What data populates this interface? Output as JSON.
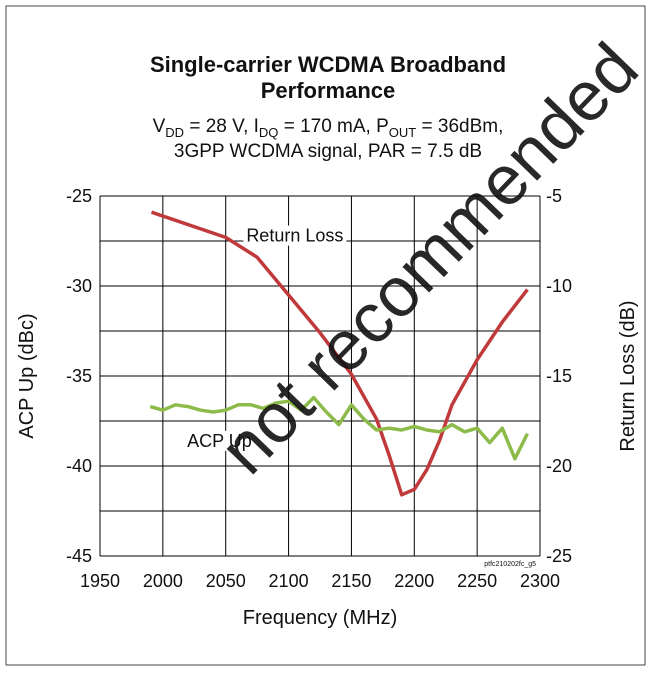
{
  "chart_data": {
    "type": "line",
    "title": [
      "Single-carrier WCDMA Broadband",
      "Performance"
    ],
    "subtitle": [
      [
        {
          "t": "V"
        },
        {
          "sub": "DD"
        },
        {
          "t": " = 28 V, I"
        },
        {
          "sub": "DQ"
        },
        {
          "t": " = 170 mA, P"
        },
        {
          "sub": "OUT"
        },
        {
          "t": " = 36dBm,"
        }
      ],
      [
        {
          "t": "3GPP WCDMA signal, PAR = 7.5 dB"
        }
      ]
    ],
    "xlabel": "Frequency (MHz)",
    "ylabel": "ACP Up (dBc)",
    "y2label": "Return Loss (dB)",
    "xlim": [
      1950,
      2300
    ],
    "xticks": [
      1950,
      2000,
      2050,
      2100,
      2150,
      2200,
      2250,
      2300
    ],
    "ylim": [
      -45,
      -25
    ],
    "yticks": [
      -25,
      -30,
      -35,
      -40,
      -45
    ],
    "yminorticks": [
      -27.5,
      -32.5,
      -37.5,
      -42.5
    ],
    "y2lim": [
      -25,
      -5
    ],
    "y2ticks": [
      -5,
      -10,
      -15,
      -20,
      -25
    ],
    "grid": true,
    "series": [
      {
        "name": "Return Loss",
        "color": "#c0393b",
        "axis": "y2",
        "x": [
          1991,
          2050,
          2075,
          2100,
          2125,
          2150,
          2170,
          2180,
          2190,
          2200,
          2210,
          2220,
          2230,
          2250,
          2270,
          2290
        ],
        "values": [
          -5.9,
          -7.3,
          -8.4,
          -10.5,
          -12.6,
          -14.9,
          -17.4,
          -19.4,
          -21.6,
          -21.3,
          -20.2,
          -18.6,
          -16.6,
          -14.1,
          -12,
          -10.2
        ]
      },
      {
        "name": "ACP Up",
        "color": "#8dbb4a",
        "axis": "y",
        "x": [
          1990,
          2000,
          2010,
          2020,
          2030,
          2040,
          2050,
          2060,
          2070,
          2080,
          2090,
          2100,
          2110,
          2120,
          2130,
          2140,
          2150,
          2160,
          2170,
          2180,
          2190,
          2200,
          2210,
          2220,
          2230,
          2240,
          2250,
          2260,
          2270,
          2280,
          2290
        ],
        "values": [
          -36.7,
          -36.9,
          -36.6,
          -36.7,
          -36.9,
          -37.0,
          -36.9,
          -36.6,
          -36.6,
          -36.8,
          -36.5,
          -36.4,
          -36.9,
          -36.2,
          -37.0,
          -37.7,
          -36.6,
          -37.4,
          -38.0,
          -37.9,
          -38.0,
          -37.8,
          -38.0,
          -38.1,
          -37.7,
          -38.1,
          -37.9,
          -38.7,
          -37.9,
          -39.6,
          -38.2
        ]
      }
    ],
    "annotations": [
      {
        "text": "Return Loss",
        "x": 2105,
        "y": -27.2
      },
      {
        "text": "ACP Up",
        "x": 2045,
        "y": -38.6
      }
    ],
    "figure_code": "ptfc210202fc_g5",
    "watermark": "not recommended"
  }
}
